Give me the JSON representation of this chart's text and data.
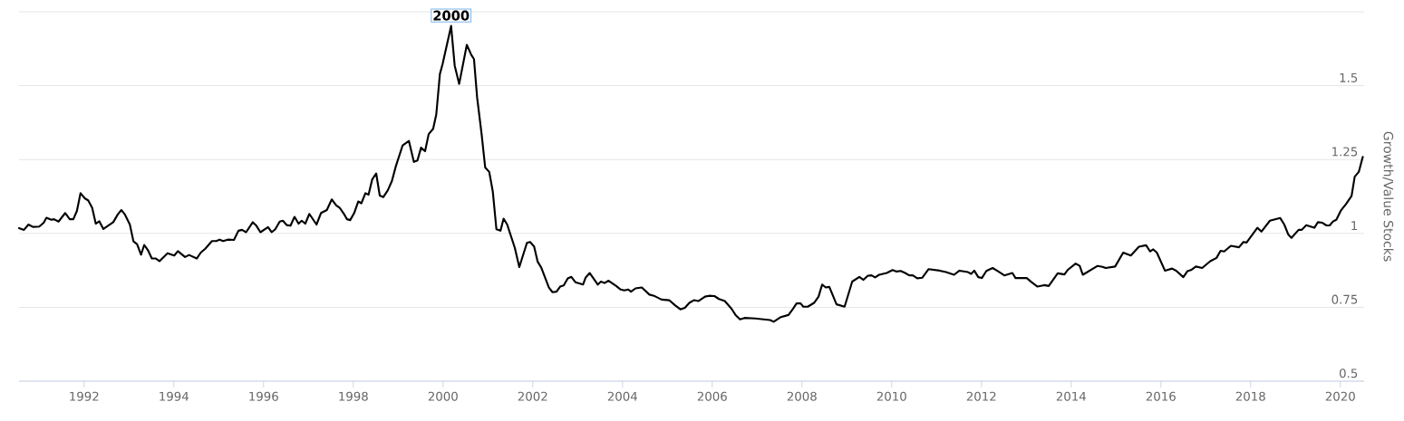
{
  "chart_data": {
    "type": "line",
    "ylabel": "Growth/Value Stocks",
    "x": [
      1990.55,
      1990.66,
      1990.76,
      1990.86,
      1991.0,
      1991.1,
      1991.16,
      1991.27,
      1991.33,
      1991.43,
      1991.58,
      1991.68,
      1991.76,
      1991.84,
      1991.92,
      1992.02,
      1992.09,
      1992.18,
      1992.26,
      1992.34,
      1992.43,
      1992.65,
      1992.75,
      1992.83,
      1992.91,
      1993.02,
      1993.1,
      1993.18,
      1993.27,
      1993.34,
      1993.42,
      1993.51,
      1993.6,
      1993.68,
      1993.86,
      1994.01,
      1994.09,
      1994.25,
      1994.34,
      1994.51,
      1994.6,
      1994.7,
      1994.85,
      1994.95,
      1995.02,
      1995.1,
      1995.2,
      1995.34,
      1995.44,
      1995.52,
      1995.61,
      1995.76,
      1995.84,
      1995.93,
      1996.1,
      1996.18,
      1996.26,
      1996.36,
      1996.43,
      1996.52,
      1996.6,
      1996.69,
      1996.78,
      1996.85,
      1996.93,
      1997.02,
      1997.18,
      1997.28,
      1997.41,
      1997.52,
      1997.62,
      1997.7,
      1997.8,
      1997.86,
      1997.93,
      1998.02,
      1998.11,
      1998.18,
      1998.27,
      1998.34,
      1998.42,
      1998.51,
      1998.59,
      1998.67,
      1998.77,
      1998.86,
      1998.95,
      1999.1,
      1999.24,
      1999.35,
      1999.43,
      1999.51,
      1999.6,
      1999.68,
      1999.78,
      1999.85,
      1999.93,
      1999.99,
      2000.18,
      2000.26,
      2000.36,
      2000.53,
      2000.63,
      2000.69,
      2000.76,
      2000.86,
      2000.94,
      2001.03,
      2001.11,
      2001.19,
      2001.28,
      2001.35,
      2001.43,
      2001.6,
      2001.7,
      2001.87,
      2001.94,
      2002.03,
      2002.11,
      2002.19,
      2002.36,
      2002.44,
      2002.53,
      2002.61,
      2002.69,
      2002.78,
      2002.86,
      2002.95,
      2003.12,
      2003.18,
      2003.27,
      2003.45,
      2003.52,
      2003.6,
      2003.69,
      2003.86,
      2003.96,
      2004.04,
      2004.13,
      2004.19,
      2004.29,
      2004.43,
      2004.6,
      2004.7,
      2004.87,
      2005.04,
      2005.17,
      2005.29,
      2005.39,
      2005.49,
      2005.59,
      2005.69,
      2005.84,
      2005.93,
      2006.05,
      2006.15,
      2006.28,
      2006.43,
      2006.52,
      2006.62,
      2006.72,
      2006.96,
      2007.29,
      2007.37,
      2007.53,
      2007.7,
      2007.8,
      2007.88,
      2007.97,
      2008.03,
      2008.13,
      2008.27,
      2008.37,
      2008.45,
      2008.53,
      2008.61,
      2008.77,
      2008.95,
      2009.12,
      2009.28,
      2009.37,
      2009.47,
      2009.55,
      2009.63,
      2009.72,
      2009.89,
      2010.02,
      2010.11,
      2010.2,
      2010.3,
      2010.39,
      2010.47,
      2010.57,
      2010.68,
      2010.82,
      2011.07,
      2011.21,
      2011.39,
      2011.51,
      2011.7,
      2011.77,
      2011.84,
      2011.93,
      2012.01,
      2012.11,
      2012.25,
      2012.37,
      2012.51,
      2012.69,
      2012.76,
      2013.01,
      2013.11,
      2013.25,
      2013.4,
      2013.5,
      2013.7,
      2013.85,
      2013.92,
      2014.1,
      2014.19,
      2014.26,
      2014.59,
      2014.7,
      2014.77,
      2014.98,
      2015.16,
      2015.33,
      2015.51,
      2015.67,
      2015.76,
      2015.83,
      2015.91,
      2016.09,
      2016.25,
      2016.34,
      2016.5,
      2016.59,
      2016.67,
      2016.78,
      2016.92,
      2017.1,
      2017.24,
      2017.33,
      2017.41,
      2017.56,
      2017.74,
      2017.84,
      2017.91,
      2018.15,
      2018.24,
      2018.43,
      2018.66,
      2018.75,
      2018.84,
      2018.91,
      2019.07,
      2019.14,
      2019.24,
      2019.42,
      2019.5,
      2019.6,
      2019.69,
      2019.76,
      2019.84,
      2019.91,
      2020.01,
      2020.13,
      2020.25,
      2020.32,
      2020.41,
      2020.5
    ],
    "series": [
      {
        "color": "#000000",
        "values": [
          1.018,
          1.012,
          1.03,
          1.022,
          1.023,
          1.036,
          1.053,
          1.046,
          1.048,
          1.04,
          1.069,
          1.048,
          1.048,
          1.076,
          1.136,
          1.118,
          1.112,
          1.087,
          1.033,
          1.041,
          1.015,
          1.038,
          1.064,
          1.079,
          1.064,
          1.03,
          0.973,
          0.964,
          0.928,
          0.961,
          0.944,
          0.915,
          0.915,
          0.906,
          0.933,
          0.925,
          0.94,
          0.92,
          0.927,
          0.915,
          0.935,
          0.948,
          0.974,
          0.974,
          0.979,
          0.974,
          0.979,
          0.978,
          1.009,
          1.012,
          1.004,
          1.038,
          1.026,
          1.004,
          1.021,
          1.004,
          1.014,
          1.04,
          1.043,
          1.028,
          1.026,
          1.056,
          1.033,
          1.043,
          1.033,
          1.066,
          1.03,
          1.069,
          1.079,
          1.115,
          1.095,
          1.086,
          1.064,
          1.048,
          1.045,
          1.069,
          1.108,
          1.102,
          1.136,
          1.131,
          1.182,
          1.203,
          1.128,
          1.123,
          1.146,
          1.177,
          1.228,
          1.298,
          1.313,
          1.242,
          1.247,
          1.29,
          1.278,
          1.336,
          1.354,
          1.403,
          1.539,
          1.573,
          1.702,
          1.568,
          1.506,
          1.638,
          1.604,
          1.59,
          1.46,
          1.336,
          1.223,
          1.208,
          1.141,
          1.014,
          1.009,
          1.05,
          1.03,
          0.951,
          0.886,
          0.968,
          0.971,
          0.956,
          0.904,
          0.884,
          0.817,
          0.801,
          0.803,
          0.82,
          0.824,
          0.848,
          0.853,
          0.835,
          0.827,
          0.851,
          0.866,
          0.827,
          0.837,
          0.832,
          0.84,
          0.822,
          0.81,
          0.807,
          0.81,
          0.803,
          0.814,
          0.817,
          0.793,
          0.789,
          0.776,
          0.774,
          0.757,
          0.743,
          0.748,
          0.765,
          0.774,
          0.771,
          0.786,
          0.789,
          0.788,
          0.778,
          0.771,
          0.745,
          0.724,
          0.709,
          0.714,
          0.712,
          0.707,
          0.701,
          0.717,
          0.724,
          0.745,
          0.763,
          0.763,
          0.752,
          0.752,
          0.765,
          0.786,
          0.827,
          0.817,
          0.819,
          0.76,
          0.752,
          0.837,
          0.853,
          0.843,
          0.857,
          0.858,
          0.851,
          0.86,
          0.866,
          0.876,
          0.871,
          0.873,
          0.866,
          0.858,
          0.858,
          0.848,
          0.85,
          0.879,
          0.874,
          0.869,
          0.86,
          0.874,
          0.869,
          0.863,
          0.874,
          0.852,
          0.849,
          0.873,
          0.883,
          0.872,
          0.858,
          0.866,
          0.849,
          0.849,
          0.836,
          0.82,
          0.825,
          0.822,
          0.865,
          0.861,
          0.876,
          0.898,
          0.89,
          0.86,
          0.89,
          0.887,
          0.883,
          0.888,
          0.935,
          0.925,
          0.955,
          0.96,
          0.939,
          0.946,
          0.935,
          0.874,
          0.881,
          0.874,
          0.852,
          0.872,
          0.876,
          0.888,
          0.883,
          0.906,
          0.917,
          0.941,
          0.939,
          0.958,
          0.953,
          0.971,
          0.969,
          1.019,
          1.006,
          1.043,
          1.052,
          1.03,
          0.996,
          0.985,
          1.012,
          1.012,
          1.028,
          1.019,
          1.038,
          1.036,
          1.027,
          1.027,
          1.041,
          1.046,
          1.077,
          1.1,
          1.127,
          1.192,
          1.208,
          1.259
        ]
      }
    ],
    "xlim": [
      1990.55,
      2020.53
    ],
    "xticks": [
      1992,
      1994,
      1996,
      1998,
      2000,
      2002,
      2004,
      2006,
      2008,
      2010,
      2012,
      2014,
      2016,
      2018,
      2020
    ],
    "ylim": [
      0.5,
      1.75
    ],
    "yticks": [
      0.5,
      0.75,
      1,
      1.25,
      1.5,
      {
        "value": 1.75,
        "label": null
      }
    ],
    "grid": "y",
    "legend": false,
    "line_style": "solid",
    "annotations": [
      {
        "text": "2000",
        "x": 2000.18,
        "y": 1.702
      }
    ]
  }
}
